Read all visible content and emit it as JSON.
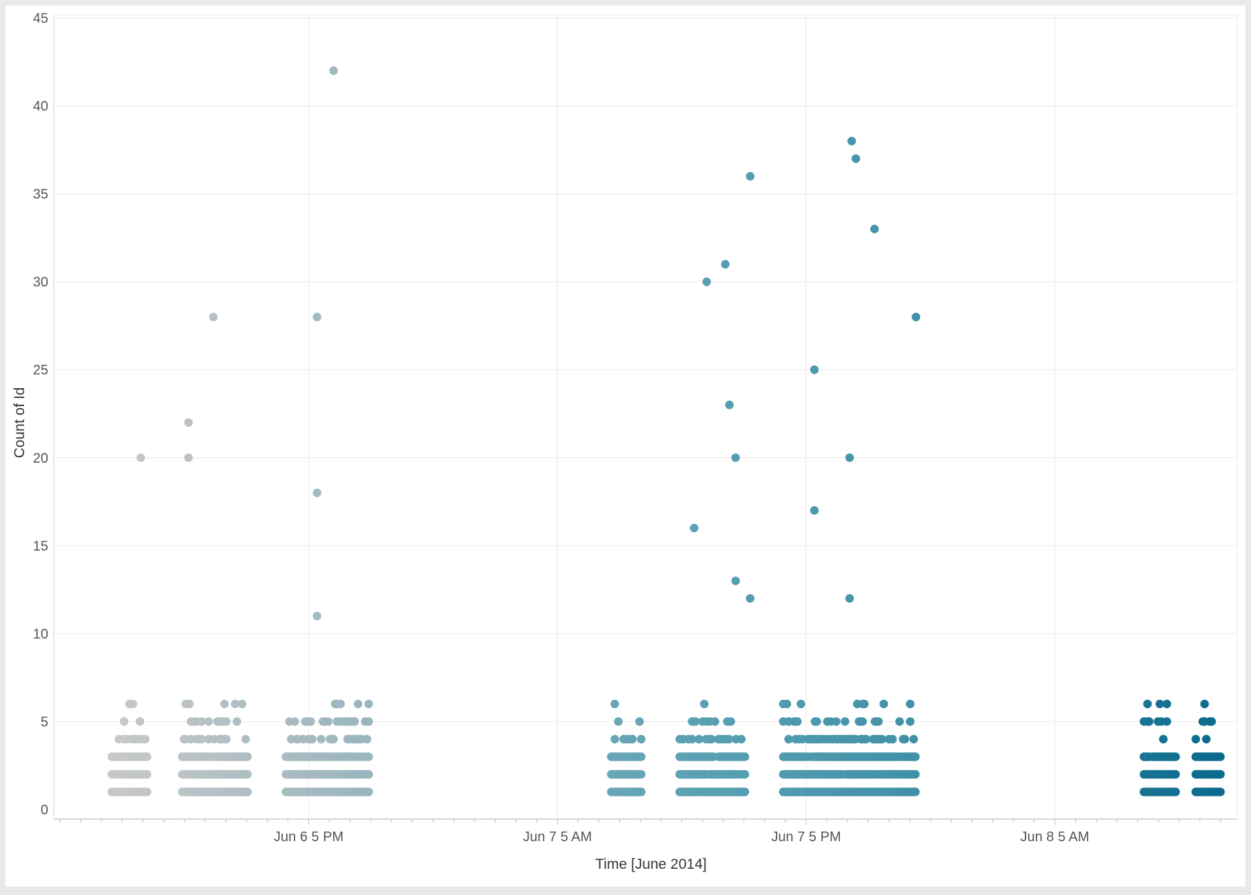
{
  "chart_data": {
    "type": "scatter",
    "title": "",
    "xlabel": "Time [June 2014]",
    "ylabel": "Count of Id",
    "ylim": [
      0,
      45
    ],
    "yticks": [
      0,
      5,
      10,
      15,
      20,
      25,
      30,
      35,
      40,
      45
    ],
    "xticks": [
      {
        "label": "Jun 6 5 PM",
        "hour": 17
      },
      {
        "label": "Jun 7 5 AM",
        "hour": 29
      },
      {
        "label": "Jun 7 5 PM",
        "hour": 41
      },
      {
        "label": "Jun 8 5 AM",
        "hour": 53
      }
    ],
    "xlim_hours": [
      4.7,
      61.8
    ],
    "x_unit": "hours after Jun 6 12 AM",
    "grid": true,
    "legend": "none",
    "color_scale": [
      "#c9c9c9",
      "#98b4be",
      "#5fa3b5",
      "#3d8fa6",
      "#0b6a8c"
    ],
    "clusters": [
      {
        "start": 7.5,
        "end": 9.2,
        "peak": 9,
        "outliers": [
          {
            "hour": 8.9,
            "value": 20
          }
        ]
      },
      {
        "start": 10.9,
        "end": 14.1,
        "peak": 10,
        "outliers": [
          {
            "hour": 11.2,
            "value": 22
          },
          {
            "hour": 11.2,
            "value": 20
          },
          {
            "hour": 12.4,
            "value": 28
          }
        ]
      },
      {
        "start": 15.9,
        "end": 19.9,
        "peak": 10,
        "outliers": [
          {
            "hour": 17.4,
            "value": 11
          },
          {
            "hour": 17.4,
            "value": 18
          },
          {
            "hour": 17.4,
            "value": 28
          },
          {
            "hour": 18.2,
            "value": 42
          }
        ]
      },
      {
        "start": 31.6,
        "end": 33.1,
        "peak": 10,
        "outliers": []
      },
      {
        "start": 34.9,
        "end": 38.1,
        "peak": 10,
        "outliers": [
          {
            "hour": 35.6,
            "value": 16
          },
          {
            "hour": 36.2,
            "value": 30
          },
          {
            "hour": 37.1,
            "value": 31
          },
          {
            "hour": 37.3,
            "value": 23
          },
          {
            "hour": 37.6,
            "value": 20
          },
          {
            "hour": 37.6,
            "value": 13
          },
          {
            "hour": 38.3,
            "value": 12
          },
          {
            "hour": 38.3,
            "value": 36
          }
        ]
      },
      {
        "start": 39.9,
        "end": 46.3,
        "peak": 11,
        "outliers": [
          {
            "hour": 41.4,
            "value": 25
          },
          {
            "hour": 41.4,
            "value": 17
          },
          {
            "hour": 43.1,
            "value": 12
          },
          {
            "hour": 43.1,
            "value": 20
          },
          {
            "hour": 43.2,
            "value": 38
          },
          {
            "hour": 43.4,
            "value": 37
          },
          {
            "hour": 44.3,
            "value": 33
          },
          {
            "hour": 46.3,
            "value": 28
          }
        ]
      },
      {
        "start": 57.3,
        "end": 58.9,
        "peak": 10,
        "outliers": []
      },
      {
        "start": 59.8,
        "end": 61.0,
        "peak": 10,
        "outliers": []
      }
    ]
  }
}
